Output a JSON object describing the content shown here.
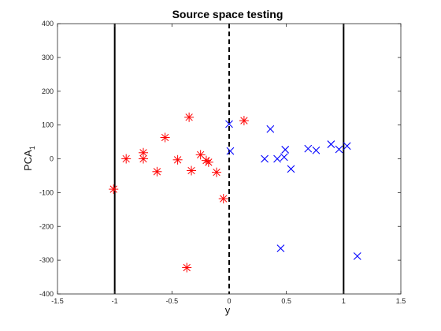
{
  "chart_data": {
    "type": "scatter",
    "title": "Source space testing",
    "xlabel": "y",
    "ylabel_main": "PCA",
    "ylabel_sub": "1",
    "xlim": [
      -1.5,
      1.5
    ],
    "ylim": [
      -400,
      400
    ],
    "xticks": [
      -1.5,
      -1,
      -0.5,
      0,
      0.5,
      1,
      1.5
    ],
    "xtick_labels": [
      "-1.5",
      "-1",
      "-0.5",
      "0",
      "0.5",
      "1",
      "1.5"
    ],
    "yticks": [
      -400,
      -300,
      -200,
      -100,
      0,
      100,
      200,
      300,
      400
    ],
    "ytick_labels": [
      "-400",
      "-300",
      "-200",
      "-100",
      "0",
      "100",
      "200",
      "300",
      "400"
    ],
    "grid": false,
    "colors": {
      "red": "#ff0000",
      "blue": "#0000ff",
      "lines": "#000000"
    },
    "series": [
      {
        "color": "red",
        "marker": "asterisk",
        "points": [
          [
            -1.01,
            -90
          ],
          [
            -0.9,
            0
          ],
          [
            -0.75,
            18
          ],
          [
            -0.75,
            0
          ],
          [
            -0.63,
            -38
          ],
          [
            -0.56,
            63
          ],
          [
            -0.45,
            -3
          ],
          [
            -0.35,
            123
          ],
          [
            -0.33,
            -35
          ],
          [
            -0.25,
            12
          ],
          [
            -0.2,
            -5
          ],
          [
            -0.18,
            -10
          ],
          [
            -0.11,
            -40
          ],
          [
            -0.05,
            -118
          ],
          [
            0.13,
            113
          ],
          [
            -0.37,
            -322
          ]
        ]
      },
      {
        "color": "blue",
        "marker": "x",
        "points": [
          [
            0.0,
            103
          ],
          [
            0.01,
            23
          ],
          [
            0.31,
            0
          ],
          [
            0.36,
            88
          ],
          [
            0.42,
            0
          ],
          [
            0.48,
            5
          ],
          [
            0.49,
            27
          ],
          [
            0.54,
            -30
          ],
          [
            0.69,
            30
          ],
          [
            0.76,
            25
          ],
          [
            0.89,
            43
          ],
          [
            0.96,
            28
          ],
          [
            1.03,
            38
          ],
          [
            0.45,
            -265
          ],
          [
            1.12,
            -288
          ]
        ]
      }
    ],
    "vertical_lines": [
      {
        "x": -1,
        "style": "solid"
      },
      {
        "x": 0,
        "style": "dashed"
      },
      {
        "x": 1,
        "style": "solid"
      }
    ]
  }
}
